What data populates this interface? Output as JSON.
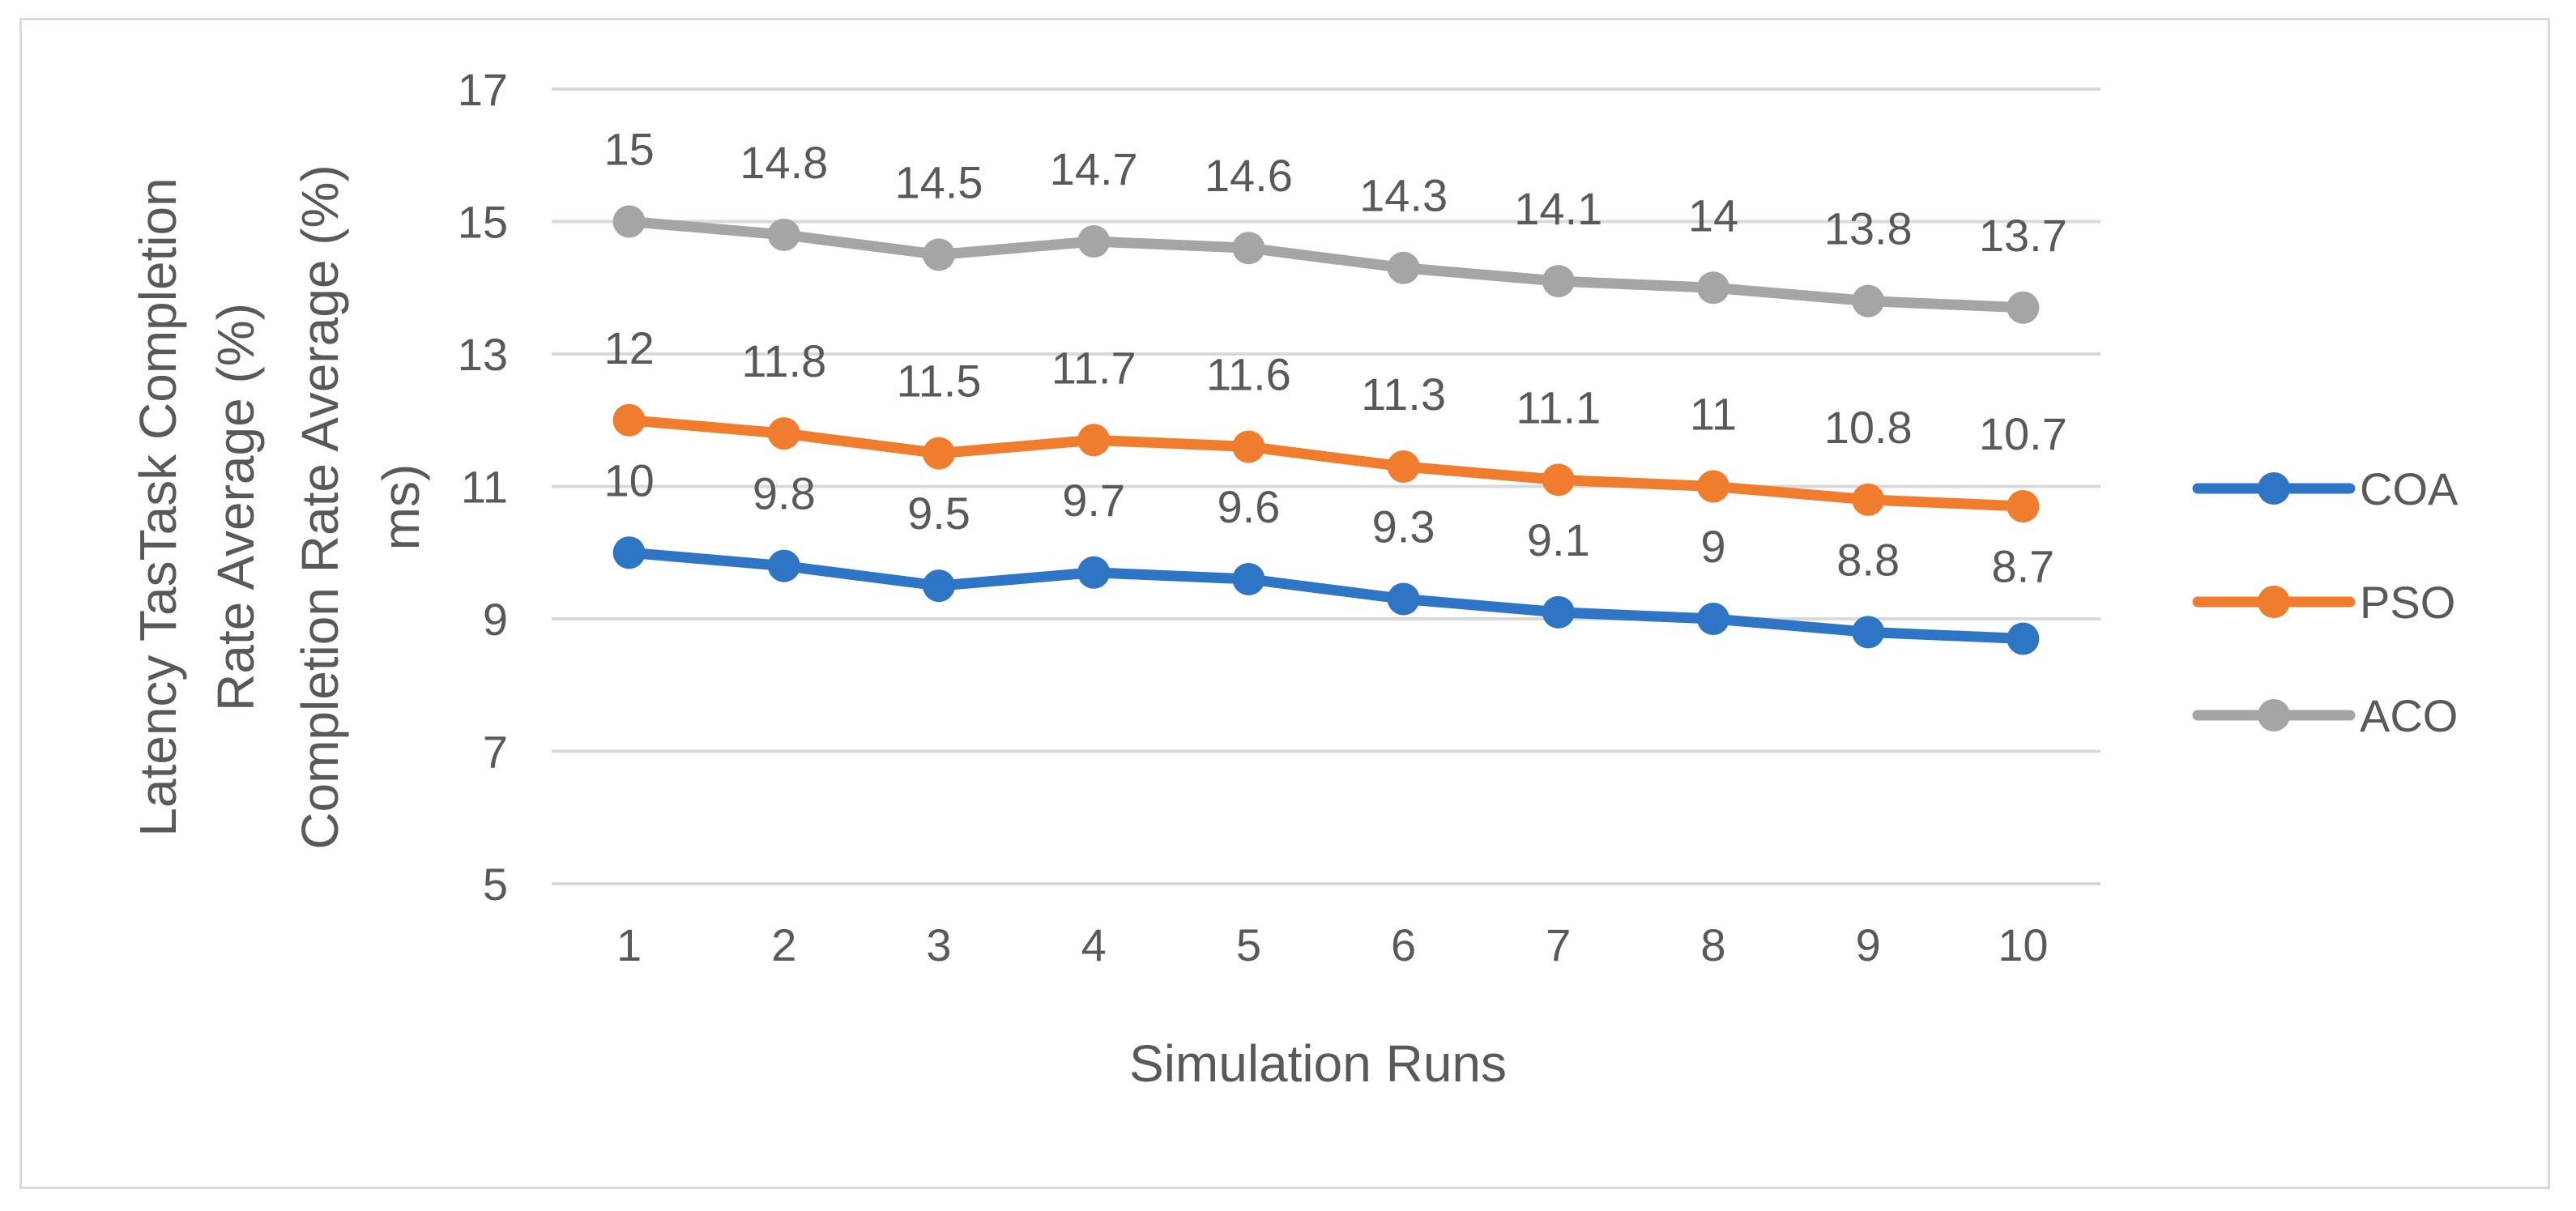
{
  "chart_data": {
    "type": "line",
    "title": "",
    "xlabel": "Simulation Runs",
    "ylabel_lines": [
      "Latency TasTask Completion",
      "Rate Average (%)",
      "Completion Rate Average (%)",
      "ms)"
    ],
    "categories": [
      "1",
      "2",
      "3",
      "4",
      "5",
      "6",
      "7",
      "8",
      "9",
      "10"
    ],
    "y_ticks": [
      "5",
      "7",
      "9",
      "11",
      "13",
      "15",
      "17"
    ],
    "ylim": [
      5,
      17
    ],
    "grid": true,
    "legend_position": "right",
    "series": [
      {
        "name": "COA",
        "color": "#2e75c6",
        "values": [
          10,
          9.8,
          9.5,
          9.7,
          9.6,
          9.3,
          9.1,
          9,
          8.8,
          8.7
        ],
        "labels": [
          "10",
          "9.8",
          "9.5",
          "9.7",
          "9.6",
          "9.3",
          "9.1",
          "9",
          "8.8",
          "8.7"
        ]
      },
      {
        "name": "PSO",
        "color": "#f07d2d",
        "values": [
          12,
          11.8,
          11.5,
          11.7,
          11.6,
          11.3,
          11.1,
          11,
          10.8,
          10.7
        ],
        "labels": [
          "12",
          "11.8",
          "11.5",
          "11.7",
          "11.6",
          "11.3",
          "11.1",
          "11",
          "10.8",
          "10.7"
        ]
      },
      {
        "name": "ACO",
        "color": "#a5a5a5",
        "values": [
          15,
          14.8,
          14.5,
          14.7,
          14.6,
          14.3,
          14.1,
          14,
          13.8,
          13.7
        ],
        "labels": [
          "15",
          "14.8",
          "14.5",
          "14.7",
          "14.6",
          "14.3",
          "14.1",
          "14",
          "13.8",
          "13.7"
        ]
      }
    ]
  }
}
